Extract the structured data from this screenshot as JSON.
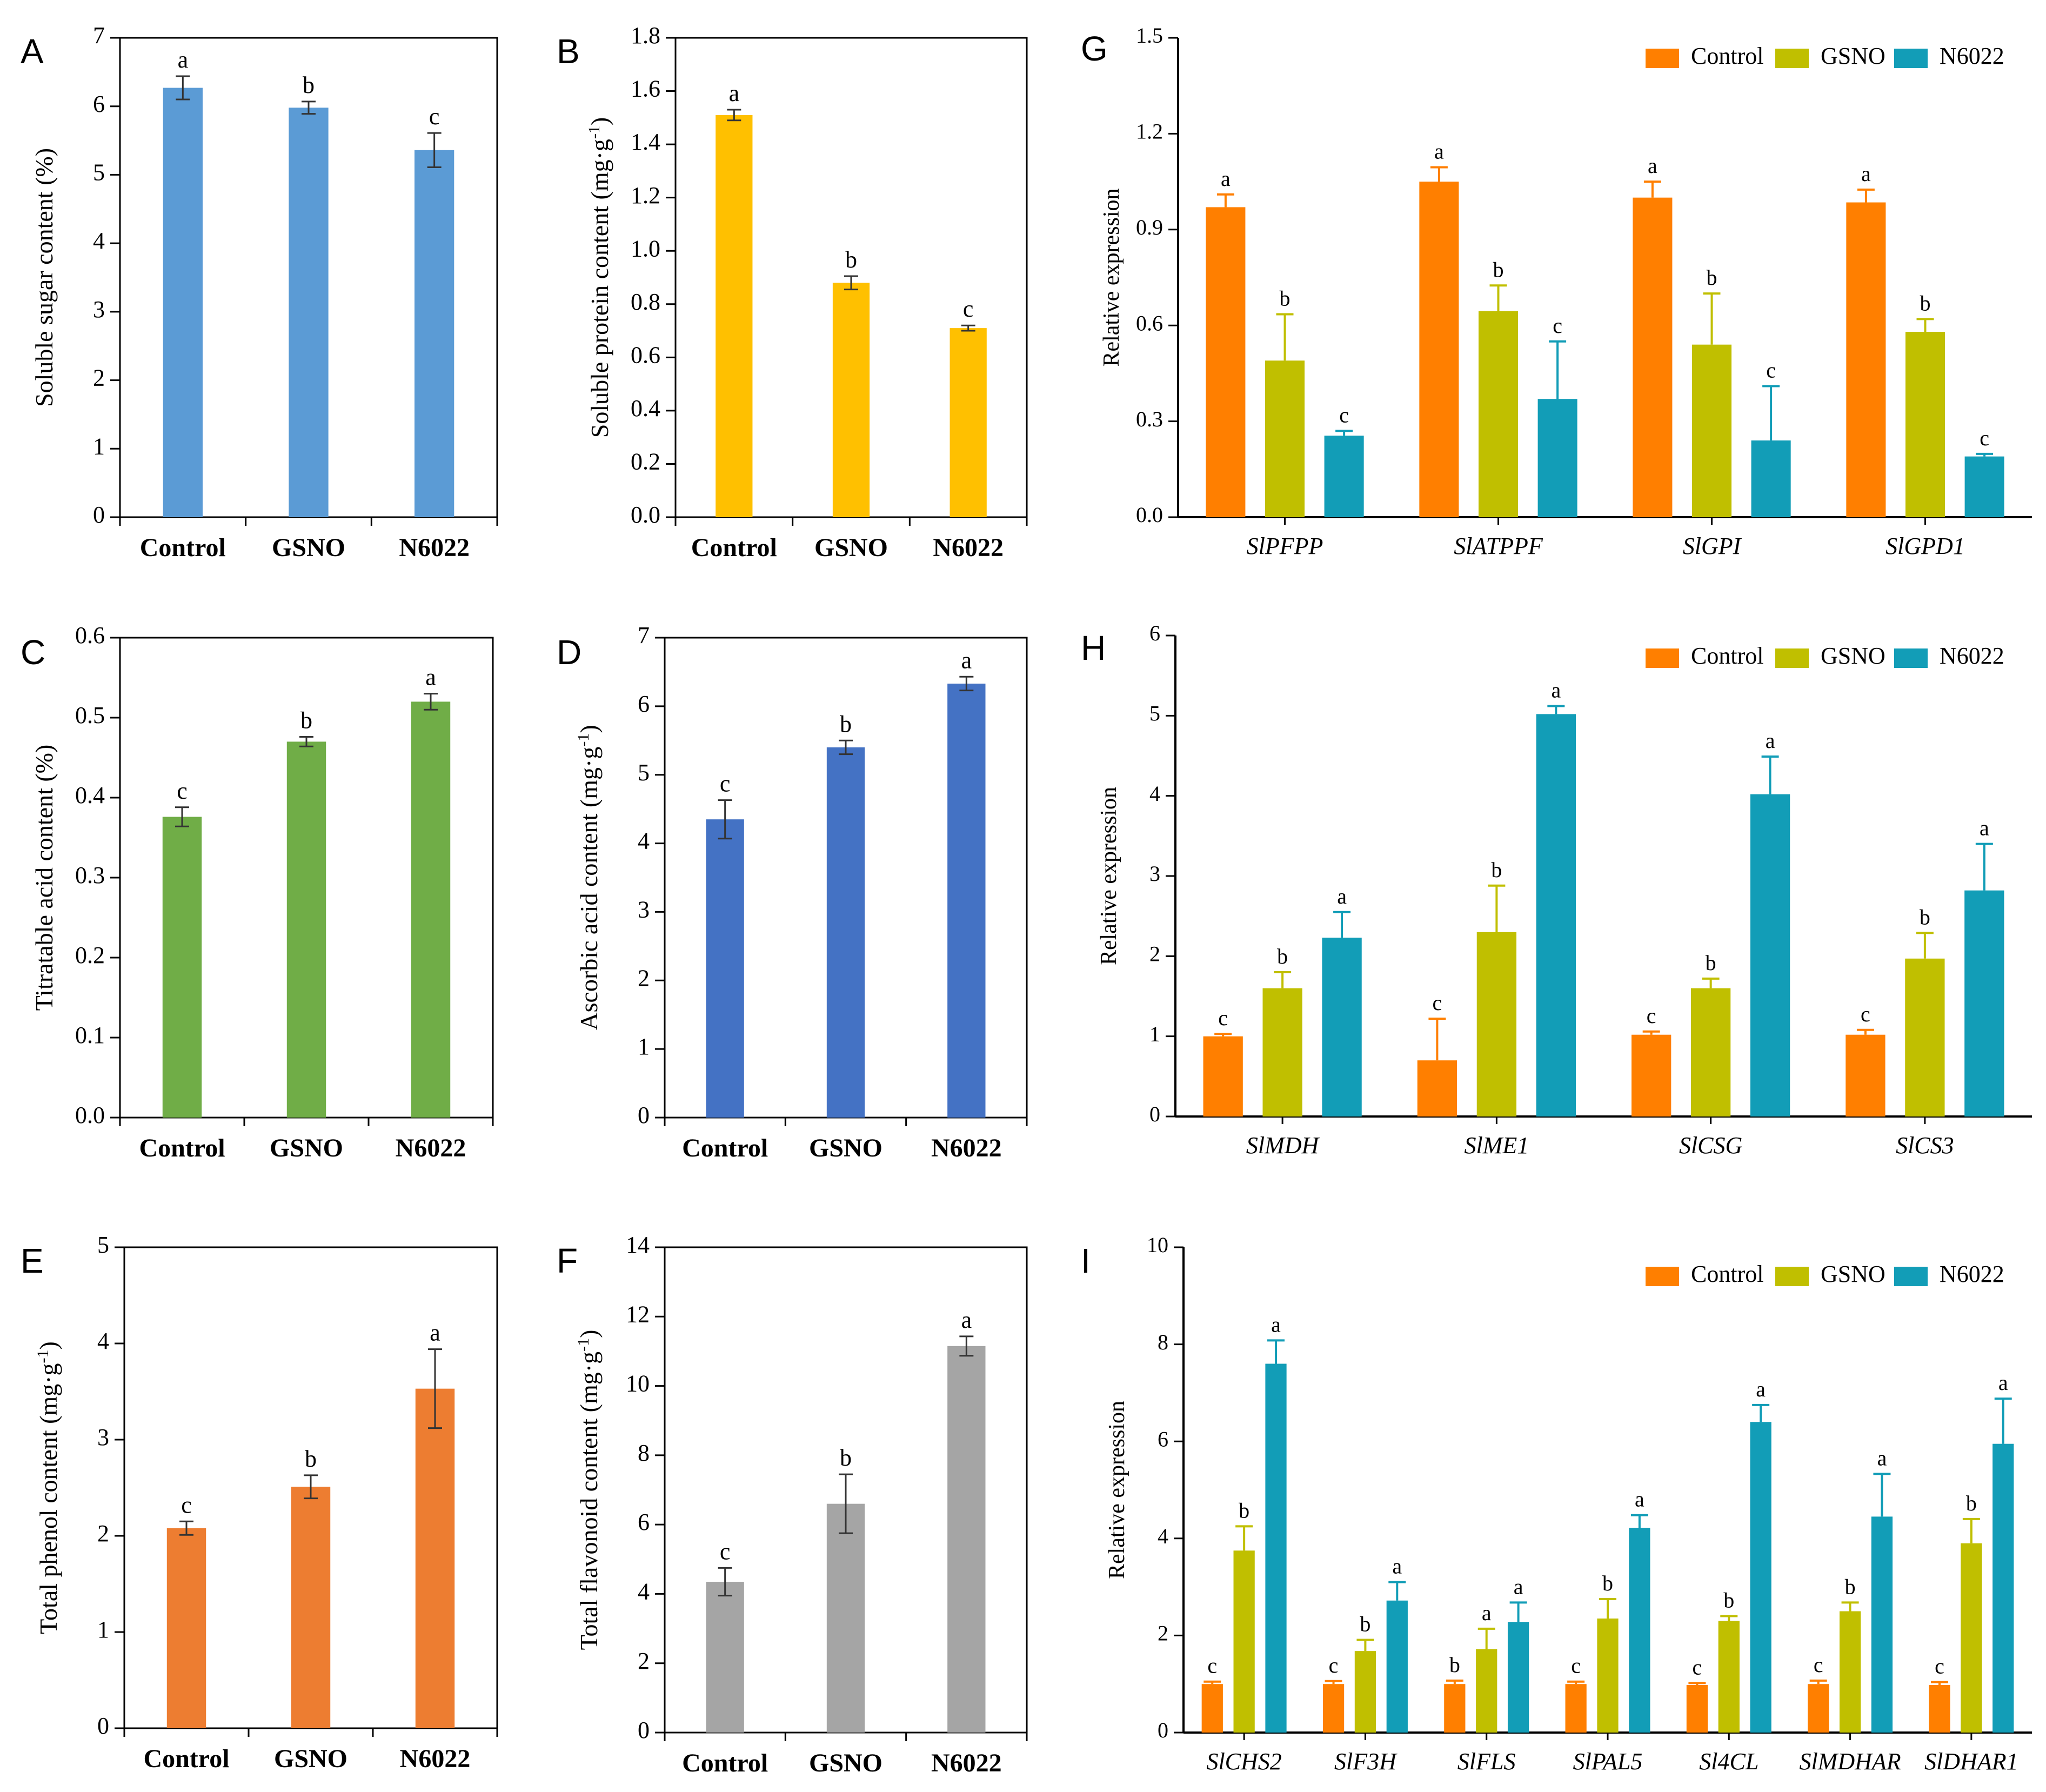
{
  "chart_data": [
    {
      "panel": "A",
      "type": "bar",
      "categories": [
        "Control",
        "GSNO",
        "N6022"
      ],
      "values": [
        6.27,
        5.98,
        5.36
      ],
      "errors": [
        0.17,
        0.09,
        0.25
      ],
      "letters": [
        "a",
        "b",
        "c"
      ],
      "ylabel": "Soluble  sugar  content  (%)",
      "ylim": [
        0,
        7
      ],
      "yticks": [
        0,
        1,
        2,
        3,
        4,
        5,
        6,
        7
      ],
      "ytick_labels": [
        "0",
        "1",
        "2",
        "3",
        "4",
        "5",
        "6",
        "7"
      ],
      "color": "#5b9bd5"
    },
    {
      "panel": "B",
      "type": "bar",
      "categories": [
        "Control",
        "GSNO",
        "N6022"
      ],
      "values": [
        1.51,
        0.88,
        0.71
      ],
      "errors": [
        0.02,
        0.025,
        0.01
      ],
      "letters": [
        "a",
        "b",
        "c"
      ],
      "ylabel_main": "Soluble  protein  content  (mg·g",
      "ylabel_sup": "-1",
      "ylabel_end": ")",
      "ylim": [
        0,
        1.8
      ],
      "yticks": [
        0,
        0.2,
        0.4,
        0.6,
        0.8,
        1.0,
        1.2,
        1.4,
        1.6,
        1.8
      ],
      "ytick_labels": [
        "0.0",
        "0.2",
        "0.4",
        "0.6",
        "0.8",
        "1.0",
        "1.2",
        "1.4",
        "1.6",
        "1.8"
      ],
      "color": "#ffc000"
    },
    {
      "panel": "C",
      "type": "bar",
      "categories": [
        "Control",
        "GSNO",
        "N6022"
      ],
      "values": [
        0.376,
        0.47,
        0.52
      ],
      "errors": [
        0.012,
        0.006,
        0.01
      ],
      "letters": [
        "c",
        "b",
        "a"
      ],
      "ylabel": "Titratable  acid content  (%)",
      "ylim": [
        0,
        0.6
      ],
      "yticks": [
        0,
        0.1,
        0.2,
        0.3,
        0.4,
        0.5,
        0.6
      ],
      "ytick_labels": [
        "0.0",
        "0.1",
        "0.2",
        "0.3",
        "0.4",
        "0.5",
        "0.6"
      ],
      "color": "#70ad47"
    },
    {
      "panel": "D",
      "type": "bar",
      "categories": [
        "Control",
        "GSNO",
        "N6022"
      ],
      "values": [
        4.35,
        5.4,
        6.33
      ],
      "errors": [
        0.28,
        0.1,
        0.1
      ],
      "letters": [
        "c",
        "b",
        "a"
      ],
      "ylabel_main": "Ascorbic  acid content  (mg·g",
      "ylabel_sup": "-1",
      "ylabel_end": ")",
      "ylim": [
        0,
        7
      ],
      "yticks": [
        0,
        1,
        2,
        3,
        4,
        5,
        6,
        7
      ],
      "ytick_labels": [
        "0",
        "1",
        "2",
        "3",
        "4",
        "5",
        "6",
        "7"
      ],
      "color": "#4472c4"
    },
    {
      "panel": "E",
      "type": "bar",
      "categories": [
        "Control",
        "GSNO",
        "N6022"
      ],
      "values": [
        2.08,
        2.51,
        3.53
      ],
      "errors": [
        0.07,
        0.12,
        0.41
      ],
      "letters": [
        "c",
        "b",
        "a"
      ],
      "ylabel_main": "Total phenol content  (mg·g",
      "ylabel_sup": "-1",
      "ylabel_end": ")",
      "ylim": [
        0,
        5
      ],
      "yticks": [
        0,
        1,
        2,
        3,
        4,
        5
      ],
      "ytick_labels": [
        "0",
        "1",
        "2",
        "3",
        "4",
        "5"
      ],
      "color": "#ed7d31"
    },
    {
      "panel": "F",
      "type": "bar",
      "categories": [
        "Control",
        "GSNO",
        "N6022"
      ],
      "values": [
        4.35,
        6.6,
        11.15
      ],
      "errors": [
        0.4,
        0.85,
        0.28
      ],
      "letters": [
        "c",
        "b",
        "a"
      ],
      "ylabel_main": "Total flavonoid  content  (mg·g",
      "ylabel_sup": "-1",
      "ylabel_end": ")",
      "ylim": [
        0,
        14
      ],
      "yticks": [
        0,
        2,
        4,
        6,
        8,
        10,
        12,
        14
      ],
      "ytick_labels": [
        "0",
        "2",
        "4",
        "6",
        "8",
        "10",
        "12",
        "14"
      ],
      "color": "#a5a5a5"
    },
    {
      "panel": "G",
      "type": "bar",
      "categories": [
        "SlPFPP",
        "SlATPPF",
        "SlGPI",
        "SlGPD1"
      ],
      "series": [
        {
          "name": "Control",
          "values": [
            0.97,
            1.05,
            1.0,
            0.985
          ],
          "errors": [
            0.04,
            0.045,
            0.05,
            0.04
          ],
          "letters": [
            "a",
            "a",
            "a",
            "a"
          ]
        },
        {
          "name": "GSNO",
          "values": [
            0.49,
            0.645,
            0.54,
            0.58
          ],
          "errors": [
            0.145,
            0.08,
            0.16,
            0.04
          ],
          "letters": [
            "b",
            "b",
            "b",
            "b"
          ]
        },
        {
          "name": "N6022",
          "values": [
            0.255,
            0.37,
            0.24,
            0.19
          ],
          "errors": [
            0.015,
            0.18,
            0.17,
            0.008
          ],
          "letters": [
            "c",
            "c",
            "c",
            "c"
          ]
        }
      ],
      "colors": [
        "#ff7f00",
        "#c0bf00",
        "#129db7"
      ],
      "ylabel": "Relative expression",
      "ylim": [
        0,
        1.5
      ],
      "yticks": [
        0,
        0.3,
        0.6,
        0.9,
        1.2,
        1.5
      ],
      "ytick_labels": [
        "0.0",
        "0.3",
        "0.6",
        "0.9",
        "1.2",
        "1.5"
      ],
      "legend": "top-right"
    },
    {
      "panel": "H",
      "type": "bar",
      "categories": [
        "SlMDH",
        "SlME1",
        "SlCSG",
        "SlCS3"
      ],
      "series": [
        {
          "name": "Control",
          "values": [
            1.0,
            0.7,
            1.02,
            1.02
          ],
          "errors": [
            0.03,
            0.52,
            0.04,
            0.06
          ],
          "letters": [
            "c",
            "c",
            "c",
            "c"
          ]
        },
        {
          "name": "GSNO",
          "values": [
            1.6,
            2.3,
            1.6,
            1.97
          ],
          "errors": [
            0.2,
            0.58,
            0.12,
            0.32
          ],
          "letters": [
            "b",
            "b",
            "b",
            "b"
          ]
        },
        {
          "name": "N6022",
          "values": [
            2.23,
            5.02,
            4.02,
            2.82
          ],
          "errors": [
            0.32,
            0.1,
            0.47,
            0.58
          ],
          "letters": [
            "a",
            "a",
            "a",
            "a"
          ]
        }
      ],
      "colors": [
        "#ff7f00",
        "#c0bf00",
        "#129db7"
      ],
      "ylabel": "Relative expression",
      "ylim": [
        0,
        6
      ],
      "yticks": [
        0,
        1,
        2,
        3,
        4,
        5,
        6
      ],
      "ytick_labels": [
        "0",
        "1",
        "2",
        "3",
        "4",
        "5",
        "6"
      ],
      "legend": "top-right"
    },
    {
      "panel": "I",
      "type": "bar",
      "categories": [
        "SlCHS2",
        "SlF3H",
        "SlFLS",
        "SlPAL5",
        "Sl4CL",
        "SlMDHAR",
        "SlDHAR1"
      ],
      "series": [
        {
          "name": "Control",
          "values": [
            1.0,
            1.0,
            1.0,
            1.0,
            0.98,
            1.0,
            0.98
          ],
          "errors": [
            0.05,
            0.06,
            0.07,
            0.05,
            0.04,
            0.07,
            0.06
          ],
          "letters": [
            "c",
            "c",
            "b",
            "c",
            "c",
            "c",
            "c"
          ]
        },
        {
          "name": "GSNO",
          "values": [
            3.75,
            1.68,
            1.72,
            2.35,
            2.3,
            2.5,
            3.9
          ],
          "errors": [
            0.5,
            0.23,
            0.42,
            0.4,
            0.1,
            0.18,
            0.5
          ],
          "letters": [
            "b",
            "b",
            "a",
            "b",
            "b",
            "b",
            "b"
          ]
        },
        {
          "name": "N6022",
          "values": [
            7.6,
            2.72,
            2.28,
            4.22,
            6.4,
            4.45,
            5.95
          ],
          "errors": [
            0.48,
            0.38,
            0.4,
            0.26,
            0.35,
            0.88,
            0.93
          ],
          "letters": [
            "a",
            "a",
            "a",
            "a",
            "a",
            "a",
            "a"
          ]
        }
      ],
      "colors": [
        "#ff7f00",
        "#c0bf00",
        "#129db7"
      ],
      "ylabel": "Relative expression",
      "ylim": [
        0,
        10
      ],
      "yticks": [
        0,
        2,
        4,
        6,
        8,
        10
      ],
      "ytick_labels": [
        "0",
        "2",
        "4",
        "6",
        "8",
        "10"
      ],
      "legend": "top-right"
    }
  ]
}
